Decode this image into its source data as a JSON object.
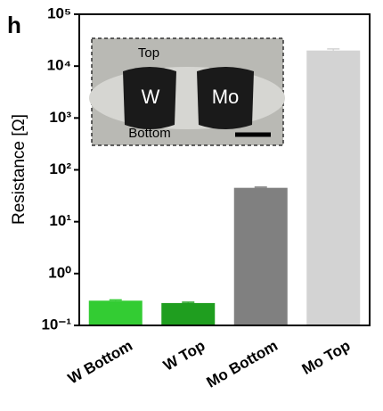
{
  "chart_data": {
    "type": "bar",
    "panel_label": "h",
    "ylabel": "Resistance [Ω]",
    "categories": [
      "W Bottom",
      "W Top",
      "Mo Bottom",
      "Mo Top"
    ],
    "values": [
      0.3,
      0.27,
      45,
      20000
    ],
    "errors": [
      0.01,
      0.01,
      1.5,
      1500
    ],
    "colors": [
      "#33cc33",
      "#1f9e1f",
      "#808080",
      "#d3d3d3"
    ],
    "ylim": [
      0.1,
      100000
    ],
    "log_scale": true,
    "yticks": [
      {
        "value": 0.1,
        "label": "10⁻¹"
      },
      {
        "value": 1,
        "label": "10⁰"
      },
      {
        "value": 10,
        "label": "10¹"
      },
      {
        "value": 100,
        "label": "10²"
      },
      {
        "value": 1000,
        "label": "10³"
      },
      {
        "value": 10000,
        "label": "10⁴"
      },
      {
        "value": 100000,
        "label": "10⁵"
      }
    ],
    "inset": {
      "top": "Top",
      "bottom": "Bottom",
      "left": "W",
      "right": "Mo"
    }
  }
}
